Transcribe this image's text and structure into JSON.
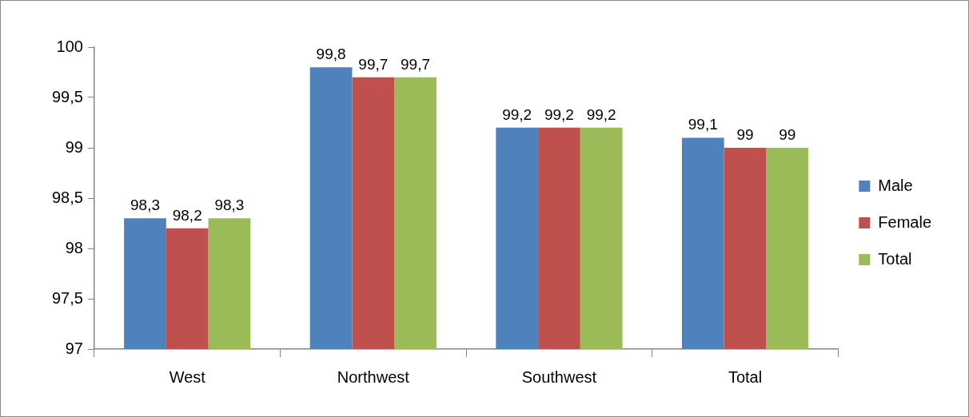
{
  "chart_data": {
    "type": "bar",
    "categories": [
      "West",
      "Northwest",
      "Southwest",
      "Total"
    ],
    "series": [
      {
        "name": "Male",
        "color": "#4f81bd",
        "values": [
          98.3,
          99.8,
          99.2,
          99.1
        ],
        "value_labels": [
          "98,3",
          "99,8",
          "99,2",
          "99,1"
        ]
      },
      {
        "name": "Female",
        "color": "#c0504d",
        "values": [
          98.2,
          99.7,
          99.2,
          99
        ],
        "value_labels": [
          "98,2",
          "99,7",
          "99,2",
          "99"
        ]
      },
      {
        "name": "Total",
        "color": "#9bbb59",
        "values": [
          98.3,
          99.7,
          99.2,
          99
        ],
        "value_labels": [
          "98,3",
          "99,7",
          "99,2",
          "99"
        ]
      }
    ],
    "ylim": [
      97,
      100
    ],
    "yticks": [
      97,
      {
        "value": 97.5,
        "label": "97,5"
      },
      98,
      {
        "value": 98.5,
        "label": "98,5"
      },
      99,
      {
        "value": 99.5,
        "label": "99,5"
      },
      100
    ],
    "legend": "right"
  }
}
